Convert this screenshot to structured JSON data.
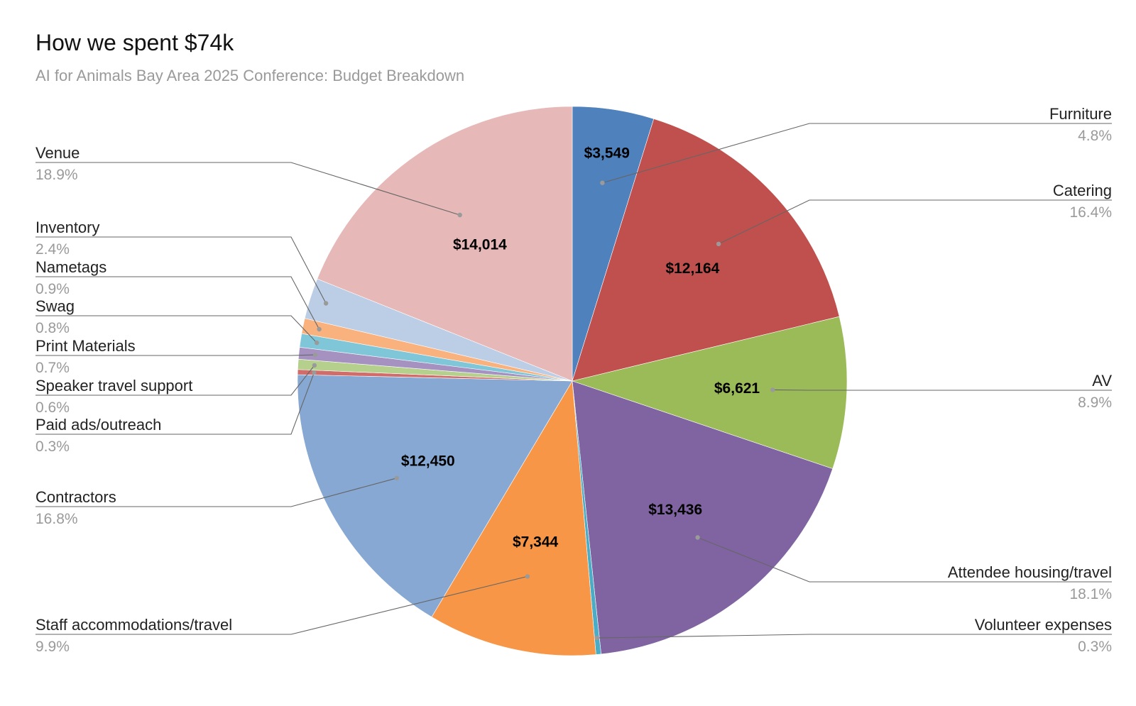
{
  "chart_data": {
    "type": "pie",
    "title": "How we spent $74k",
    "subtitle": "AI for Animals Bay Area 2025 Conference: Budget Breakdown",
    "slices": [
      {
        "name": "Furniture",
        "value": 3549,
        "value_label": "$3,549",
        "percent": "4.8%",
        "color": "#4f81bd"
      },
      {
        "name": "Catering",
        "value": 12164,
        "value_label": "$12,164",
        "percent": "16.4%",
        "color": "#c0504d"
      },
      {
        "name": "AV",
        "value": 6621,
        "value_label": "$6,621",
        "percent": "8.9%",
        "color": "#9bbb59"
      },
      {
        "name": "Attendee housing/travel",
        "value": 13436,
        "value_label": "$13,436",
        "percent": "18.1%",
        "color": "#8064a2"
      },
      {
        "name": "Volunteer expenses",
        "value": 222,
        "value_label": "",
        "percent": "0.3%",
        "color": "#4bacc6"
      },
      {
        "name": "Staff accommodations/travel",
        "value": 7344,
        "value_label": "$7,344",
        "percent": "9.9%",
        "color": "#f79646"
      },
      {
        "name": "Contractors",
        "value": 12450,
        "value_label": "$12,450",
        "percent": "16.8%",
        "color": "#86a8d3"
      },
      {
        "name": "Paid ads/outreach",
        "value": 222,
        "value_label": "",
        "percent": "0.3%",
        "color": "#d06c6a"
      },
      {
        "name": "Speaker travel support",
        "value": 444,
        "value_label": "",
        "percent": "0.6%",
        "color": "#b5cf8c"
      },
      {
        "name": "Print Materials",
        "value": 518,
        "value_label": "",
        "percent": "0.7%",
        "color": "#a592c1"
      },
      {
        "name": "Swag",
        "value": 592,
        "value_label": "",
        "percent": "0.8%",
        "color": "#80c6d9"
      },
      {
        "name": "Nametags",
        "value": 666,
        "value_label": "",
        "percent": "0.9%",
        "color": "#f9b27e"
      },
      {
        "name": "Inventory",
        "value": 1776,
        "value_label": "",
        "percent": "2.4%",
        "color": "#bccde6"
      },
      {
        "name": "Venue",
        "value": 14014,
        "value_label": "$14,014",
        "percent": "18.9%",
        "color": "#e6b8b7"
      }
    ]
  }
}
